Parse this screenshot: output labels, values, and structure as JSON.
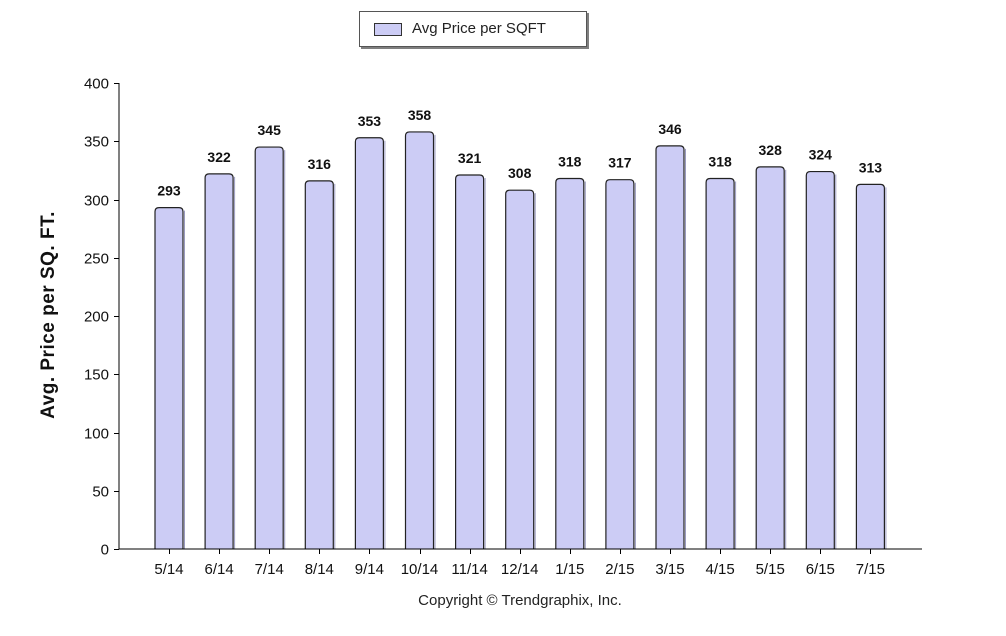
{
  "chart_data": {
    "type": "bar",
    "categories": [
      "5/14",
      "6/14",
      "7/14",
      "8/14",
      "9/14",
      "10/14",
      "11/14",
      "12/14",
      "1/15",
      "2/15",
      "3/15",
      "4/15",
      "5/15",
      "6/15",
      "7/15"
    ],
    "series": [
      {
        "name": "Avg Price per SQFT",
        "values": [
          293,
          322,
          345,
          316,
          353,
          358,
          321,
          308,
          318,
          317,
          346,
          318,
          328,
          324,
          313
        ]
      }
    ],
    "title": "",
    "xlabel": "",
    "ylabel": "Avg. Price per SQ. FT.",
    "ylim": [
      0,
      400
    ],
    "yticks": [
      0,
      50,
      100,
      150,
      200,
      250,
      300,
      350,
      400
    ],
    "grid": false,
    "legend_position": "top-center",
    "bar_color": "#ccccf5",
    "bar_outline": "#222222"
  },
  "footer": {
    "copyright": "Copyright © Trendgraphix, Inc."
  }
}
